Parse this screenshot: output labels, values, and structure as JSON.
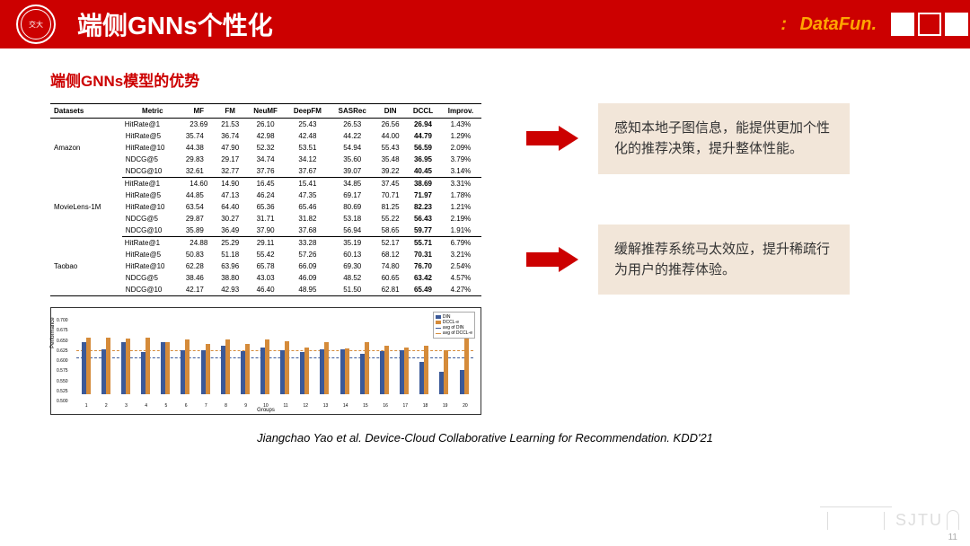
{
  "header": {
    "title": "端侧GNNs个性化",
    "brand": "DataFun."
  },
  "subtitle": "端侧GNNs模型的优势",
  "table": {
    "columns": [
      "Datasets",
      "Metric",
      "MF",
      "FM",
      "NeuMF",
      "DeepFM",
      "SASRec",
      "DIN",
      "DCCL",
      "Improv."
    ],
    "groups": [
      {
        "dataset": "Amazon",
        "rows": [
          [
            "HitRate@1",
            "23.69",
            "21.53",
            "26.10",
            "25.43",
            "26.53",
            "26.56",
            "26.94",
            "1.43%"
          ],
          [
            "HitRate@5",
            "35.74",
            "36.74",
            "42.98",
            "42.48",
            "44.22",
            "44.00",
            "44.79",
            "1.29%"
          ],
          [
            "HitRate@10",
            "44.38",
            "47.90",
            "52.32",
            "53.51",
            "54.94",
            "55.43",
            "56.59",
            "2.09%"
          ],
          [
            "NDCG@5",
            "29.83",
            "29.17",
            "34.74",
            "34.12",
            "35.60",
            "35.48",
            "36.95",
            "3.79%"
          ],
          [
            "NDCG@10",
            "32.61",
            "32.77",
            "37.76",
            "37.67",
            "39.07",
            "39.22",
            "40.45",
            "3.14%"
          ]
        ]
      },
      {
        "dataset": "MovieLens-1M",
        "rows": [
          [
            "HitRate@1",
            "14.60",
            "14.90",
            "16.45",
            "15.41",
            "34.85",
            "37.45",
            "38.69",
            "3.31%"
          ],
          [
            "HitRate@5",
            "44.85",
            "47.13",
            "46.24",
            "47.35",
            "69.17",
            "70.71",
            "71.97",
            "1.78%"
          ],
          [
            "HitRate@10",
            "63.54",
            "64.40",
            "65.36",
            "65.46",
            "80.69",
            "81.25",
            "82.23",
            "1.21%"
          ],
          [
            "NDCG@5",
            "29.87",
            "30.27",
            "31.71",
            "31.82",
            "53.18",
            "55.22",
            "56.43",
            "2.19%"
          ],
          [
            "NDCG@10",
            "35.89",
            "36.49",
            "37.90",
            "37.68",
            "56.94",
            "58.65",
            "59.77",
            "1.91%"
          ]
        ]
      },
      {
        "dataset": "Taobao",
        "rows": [
          [
            "HitRate@1",
            "24.88",
            "25.29",
            "29.11",
            "33.28",
            "35.19",
            "52.17",
            "55.71",
            "6.79%"
          ],
          [
            "HitRate@5",
            "50.83",
            "51.18",
            "55.42",
            "57.26",
            "60.13",
            "68.12",
            "70.31",
            "3.21%"
          ],
          [
            "HitRate@10",
            "62.28",
            "63.96",
            "65.78",
            "66.09",
            "69.30",
            "74.80",
            "76.70",
            "2.54%"
          ],
          [
            "NDCG@5",
            "38.46",
            "38.80",
            "43.03",
            "46.09",
            "48.52",
            "60.65",
            "63.42",
            "4.57%"
          ],
          [
            "NDCG@10",
            "42.17",
            "42.93",
            "46.40",
            "48.95",
            "51.50",
            "62.81",
            "65.49",
            "4.27%"
          ]
        ]
      }
    ]
  },
  "chart": {
    "ylabel": "Performance",
    "xlabel": "Groups",
    "ylim": [
      0.5,
      0.7
    ],
    "yticks": [
      "0.500",
      "0.525",
      "0.550",
      "0.575",
      "0.600",
      "0.625",
      "0.650",
      "0.675",
      "0.700"
    ],
    "xticks": [
      "1",
      "2",
      "3",
      "4",
      "5",
      "6",
      "7",
      "8",
      "9",
      "10",
      "11",
      "12",
      "13",
      "14",
      "15",
      "16",
      "17",
      "18",
      "19",
      "20"
    ],
    "colors": {
      "din": "#3b5998",
      "dccl": "#d58b3a",
      "avg_din": "#3b5998",
      "avg_dccl": "#d58b3a"
    },
    "legend": [
      "DIN",
      "DCCL-e",
      "avg of DIN",
      "avg of DCCL-e"
    ],
    "avg_din": 0.607,
    "avg_dccl": 0.625,
    "bars": [
      [
        0.63,
        0.64
      ],
      [
        0.612,
        0.64
      ],
      [
        0.63,
        0.638
      ],
      [
        0.605,
        0.64
      ],
      [
        0.628,
        0.63
      ],
      [
        0.608,
        0.635
      ],
      [
        0.608,
        0.625
      ],
      [
        0.62,
        0.635
      ],
      [
        0.606,
        0.625
      ],
      [
        0.615,
        0.636
      ],
      [
        0.61,
        0.632
      ],
      [
        0.604,
        0.615
      ],
      [
        0.612,
        0.628
      ],
      [
        0.612,
        0.614
      ],
      [
        0.6,
        0.628
      ],
      [
        0.607,
        0.62
      ],
      [
        0.608,
        0.616
      ],
      [
        0.58,
        0.62
      ],
      [
        0.555,
        0.61
      ],
      [
        0.56,
        0.64
      ]
    ]
  },
  "callouts": [
    "感知本地子图信息，能提供更加个性化的推荐决策，提升整体性能。",
    "缓解推荐系统马太效应，提升稀疏行为用户的推荐体验。"
  ],
  "citation": "Jiangchao Yao et al. Device-Cloud Collaborative Learning for Recommendation. KDD'21",
  "watermark": "SJTU",
  "pagenum": "11"
}
